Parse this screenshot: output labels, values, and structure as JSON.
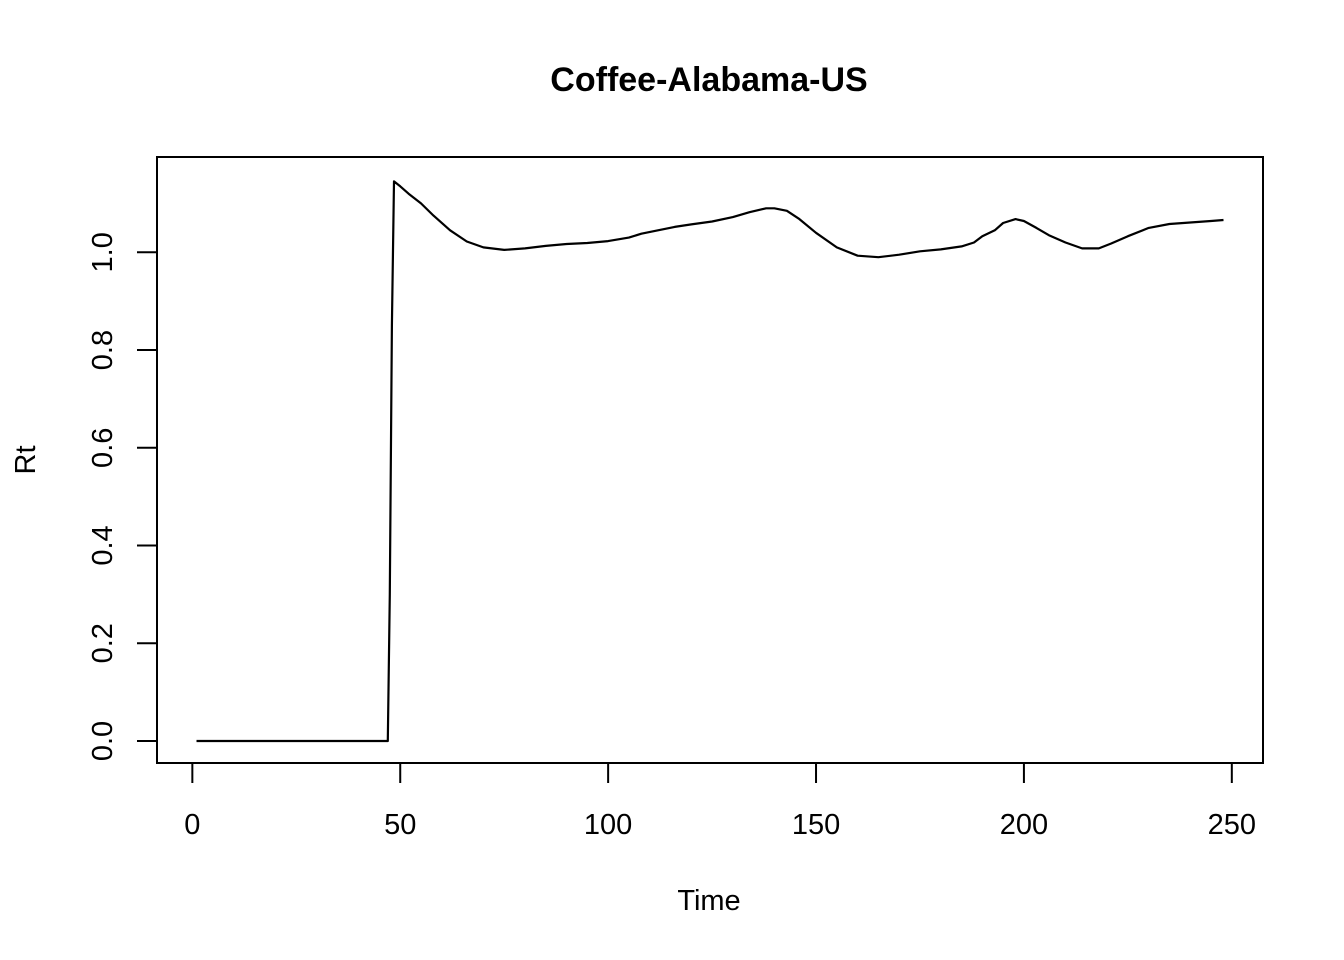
{
  "chart_data": {
    "type": "line",
    "title": "Coffee-Alabama-US",
    "xlabel": "Time",
    "ylabel": "Rt",
    "xlim": [
      -8.5,
      257.5
    ],
    "ylim": [
      -0.045,
      1.195
    ],
    "xticks": [
      0,
      50,
      100,
      150,
      200,
      250
    ],
    "xtick_labels": [
      "0",
      "50",
      "100",
      "150",
      "200",
      "250"
    ],
    "yticks": [
      0.0,
      0.2,
      0.4,
      0.6,
      0.8,
      1.0
    ],
    "ytick_labels": [
      "0.0",
      "0.2",
      "0.4",
      "0.6",
      "0.8",
      "1.0"
    ],
    "grid": false,
    "series": [
      {
        "color": "#000000",
        "x": [
          1,
          10,
          20,
          30,
          40,
          47,
          47.5,
          48,
          48.5,
          50,
          52,
          55,
          58,
          62,
          66,
          70,
          75,
          80,
          85,
          90,
          95,
          100,
          105,
          108,
          112,
          116,
          120,
          125,
          130,
          134,
          138,
          140,
          143,
          146,
          150,
          155,
          160,
          165,
          170,
          175,
          180,
          185,
          188,
          190,
          193,
          195,
          198,
          200,
          203,
          206,
          210,
          214,
          218,
          221,
          225,
          230,
          235,
          240,
          245,
          248
        ],
        "y": [
          0.0,
          0.0,
          0.0,
          0.0,
          0.0,
          0.0,
          0.3,
          0.85,
          1.145,
          1.135,
          1.12,
          1.1,
          1.075,
          1.045,
          1.022,
          1.01,
          1.005,
          1.008,
          1.013,
          1.017,
          1.019,
          1.023,
          1.03,
          1.038,
          1.045,
          1.052,
          1.057,
          1.063,
          1.072,
          1.082,
          1.09,
          1.09,
          1.085,
          1.068,
          1.04,
          1.01,
          0.993,
          0.99,
          0.995,
          1.002,
          1.006,
          1.012,
          1.02,
          1.033,
          1.045,
          1.06,
          1.068,
          1.064,
          1.05,
          1.035,
          1.02,
          1.008,
          1.008,
          1.018,
          1.033,
          1.05,
          1.058,
          1.061,
          1.064,
          1.066
        ]
      }
    ]
  }
}
